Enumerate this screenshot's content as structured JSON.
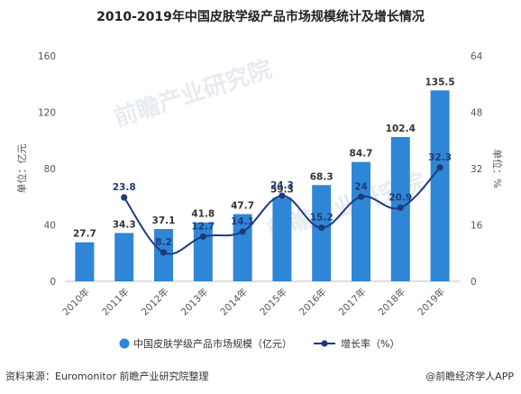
{
  "title": "2010-2019年中国皮肤学级产品市场规模统计及增长情况",
  "footer": {
    "source": "资料来源：Euromonitor 前瞻产业研究院整理",
    "credit": "@前瞻经济学人APP"
  },
  "chart_data": {
    "type": "bar",
    "categories": [
      "2010年",
      "2011年",
      "2012年",
      "2013年",
      "2014年",
      "2015年",
      "2016年",
      "2017年",
      "2018年",
      "2019年"
    ],
    "series": [
      {
        "name": "中国皮肤学级产品市场规模（亿元）",
        "type": "bar",
        "axis": "left",
        "values": [
          27.7,
          34.3,
          37.1,
          41.8,
          47.7,
          59.3,
          68.3,
          84.7,
          102.4,
          135.5
        ],
        "labels": [
          "27.7",
          "34.3",
          "37.1",
          "41.8",
          "47.7",
          "59.3",
          "68.3",
          "84.7",
          "102.4",
          "135.5"
        ]
      },
      {
        "name": "增长率（%）",
        "type": "line",
        "axis": "right",
        "values": [
          null,
          23.8,
          8.2,
          12.7,
          14.1,
          24.3,
          15.2,
          24,
          20.9,
          32.3
        ],
        "labels": [
          "",
          "23.8",
          "8.2",
          "12.7",
          "14.1",
          "24.3",
          "15.2",
          "24",
          "20.9",
          "32.3"
        ]
      }
    ],
    "ylabel": "单位：亿元",
    "y2label": "单位：%",
    "ylim": [
      0,
      160
    ],
    "yticks": [
      "0",
      "40",
      "80",
      "120",
      "160"
    ],
    "y2lim": [
      0,
      64
    ],
    "y2ticks": [
      "0",
      "16",
      "32",
      "48",
      "64"
    ],
    "grid": false,
    "legend": "bottom",
    "colors": {
      "bar": "#2f86d6",
      "line": "#1f3b7a"
    }
  },
  "watermark": "前瞻产业研究院"
}
